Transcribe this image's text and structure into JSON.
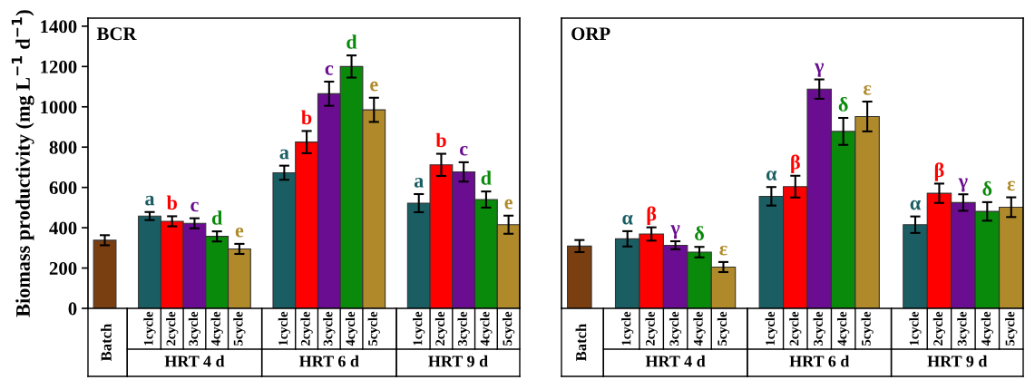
{
  "chart_data": [
    {
      "type": "bar",
      "title": "BCR",
      "ylabel": "Biomass productivity (mg L$^{−1}$ d$^{−1}$)",
      "categories": [
        "Batch",
        null,
        "1cycle",
        "2cycle",
        "3cycle",
        "4cycle",
        "5cycle",
        null,
        "1cycle",
        "2cycle",
        "3cycle",
        "4cycle",
        "5cycle",
        null,
        "1cycle",
        "2cycle",
        "3cycle",
        "4cycle",
        "5cycle"
      ],
      "values": [
        338,
        null,
        458,
        432,
        422,
        357,
        295,
        null,
        673,
        825,
        1065,
        1200,
        985,
        null,
        522,
        712,
        677,
        540,
        415
      ],
      "errors": [
        25,
        null,
        20,
        25,
        25,
        25,
        25,
        null,
        35,
        55,
        60,
        55,
        60,
        null,
        45,
        55,
        48,
        40,
        45
      ],
      "value_labels": [
        null,
        null,
        "a",
        "b",
        "c",
        "d",
        "e",
        null,
        "a",
        "b",
        "c",
        "d",
        "e",
        null,
        "a",
        "b",
        "c",
        "d",
        "e"
      ],
      "colors": [
        "#7a3f10",
        null,
        "#1a5e63",
        "#ff0000",
        "#6a0d91",
        "#0a8a0a",
        "#b08a2a",
        null,
        "#1a5e63",
        "#ff0000",
        "#6a0d91",
        "#0a8a0a",
        "#b08a2a",
        null,
        "#1a5e63",
        "#ff0000",
        "#6a0d91",
        "#0a8a0a",
        "#b08a2a"
      ],
      "annotations": [
        "HRT 4 d",
        "HRT 6 d",
        "HRT 9 d"
      ],
      "ylim": [
        0,
        1440
      ],
      "yticks": [
        0,
        200,
        400,
        600,
        800,
        1000,
        1200,
        1400
      ],
      "grid": false,
      "legend": false
    },
    {
      "type": "bar",
      "title": "ORP",
      "tick_labels": "x",
      "categories": [
        "Batch",
        null,
        "1cycle",
        "2cycle",
        "3cycle",
        "4cycle",
        "5cycle",
        null,
        "1cycle",
        "2cycle",
        "3cycle",
        "4cycle",
        "5cycle",
        null,
        "1cycle",
        "2cycle",
        "3cycle",
        "4cycle",
        "5cycle"
      ],
      "values": [
        309,
        null,
        345,
        369,
        313,
        279,
        205,
        null,
        556,
        604,
        1088,
        878,
        952,
        null,
        415,
        571,
        525,
        481,
        502
      ],
      "errors": [
        30,
        null,
        38,
        33,
        20,
        26,
        25,
        null,
        46,
        54,
        48,
        67,
        74,
        null,
        41,
        48,
        41,
        46,
        49
      ],
      "value_labels": [
        null,
        null,
        "α",
        "β",
        "γ",
        "δ",
        "ε",
        null,
        "α",
        "β",
        "γ",
        "δ",
        "ε",
        null,
        "α",
        "β",
        "γ",
        "δ",
        "ε"
      ],
      "colors": [
        "#7a3f10",
        null,
        "#1a5e63",
        "#ff0000",
        "#6a0d91",
        "#0a8a0a",
        "#b08a2a",
        null,
        "#1a5e63",
        "#ff0000",
        "#6a0d91",
        "#0a8a0a",
        "#b08a2a",
        null,
        "#1a5e63",
        "#ff0000",
        "#6a0d91",
        "#0a8a0a",
        "#b08a2a"
      ],
      "annotations": [
        "HRT 4 d",
        "HRT 6 d",
        "HRT 9 d"
      ],
      "ylim": [
        0,
        1440
      ],
      "yticks": [
        0,
        200,
        400,
        600,
        800,
        1000,
        1200,
        1400
      ],
      "grid": false,
      "legend": false
    }
  ]
}
